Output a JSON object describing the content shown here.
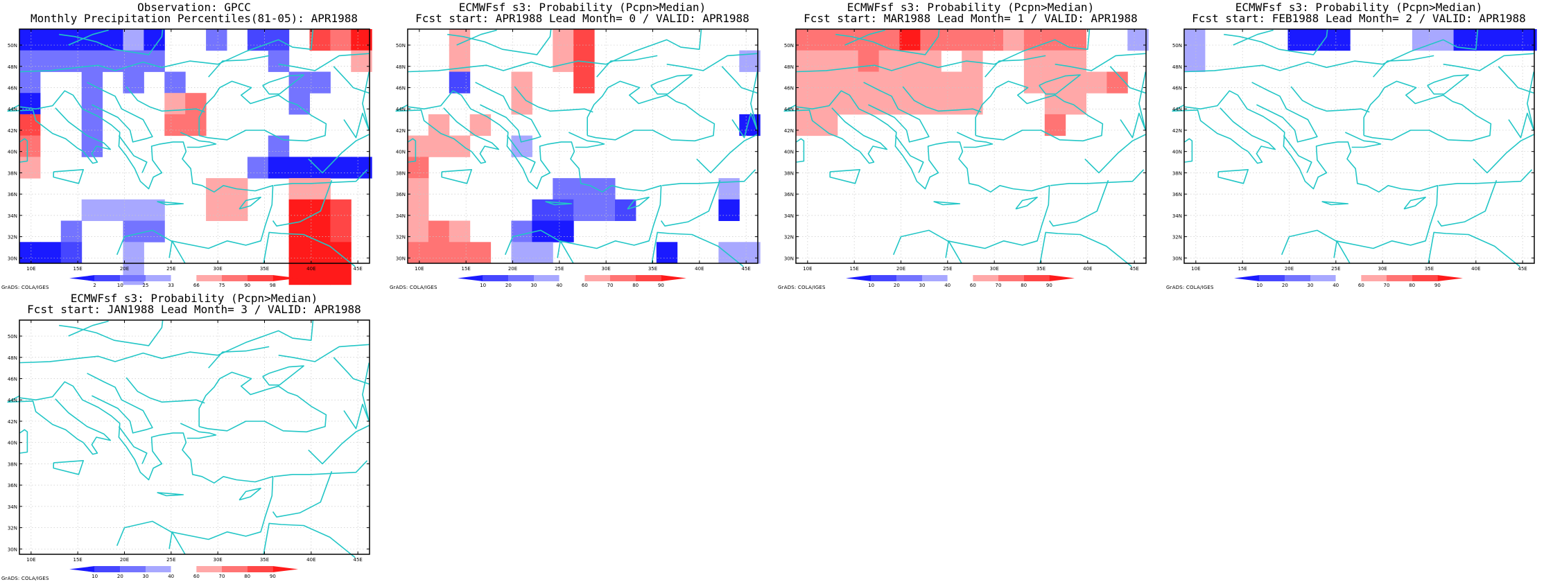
{
  "grads_credit": "GrADS: COLA/IGES",
  "lat_ticks": [
    "30N",
    "32N",
    "34N",
    "36N",
    "38N",
    "40N",
    "42N",
    "44N",
    "46N",
    "48N",
    "50N"
  ],
  "lon_ticks": [
    "10E",
    "15E",
    "20E",
    "25E",
    "30E",
    "35E",
    "40E",
    "45E"
  ],
  "colors": {
    "coastline": "#22c6c6",
    "grid": "#c8c8c8",
    "obs_scale": [
      "#1a1aff",
      "#4646ff",
      "#7474ff",
      "#a8a8ff",
      "#ffffff",
      "#ffa8a8",
      "#ff7474",
      "#ff4646",
      "#ff1a1a"
    ],
    "prob_scale": [
      "#1a1aff",
      "#4646ff",
      "#7474ff",
      "#a8a8ff",
      "#ffffff",
      "#ffa8a8",
      "#ff7474",
      "#ff4646",
      "#ff1a1a"
    ]
  },
  "panels": [
    {
      "title_line1": "Observation: GPCC",
      "title_line2": "Monthly Precipitation Percentiles(81-05): APR1988",
      "legend_labels": [
        "2",
        "10",
        "25",
        "33",
        "66",
        "75",
        "90",
        "98"
      ],
      "grid": [
        "cccccvdnnsnbbnrpy",
        "eeeeeeennnnnsnnnq",
        "ennsnenennnnnssnn",
        "cnnsnnnqpnnnnsnnn",
        "rnnsnnnppnnnnnnnn",
        "pnnsnnnnnnnnsnnnn",
        "qnnnnnnnnnnscccdd",
        "nnnnnnnnnqqnnqqnn",
        "nnnvvvvnnqqnnyyrn",
        "nnsnnssnnnnnnyyrn",
        "ddtnnvnnnnnnnyyyn",
        "nnnnnvnnnnnnnyyyn"
      ]
    },
    {
      "title_line1": "ECMWFsf s3: Probability (Pcpn>Median)",
      "title_line2": "Fcst start: APR1988  Lead Month= 0 / VALID: APR1988",
      "legend_labels": [
        "10",
        "20",
        "30",
        "40",
        "60",
        "70",
        "80",
        "90"
      ],
      "grid": [
        "nnqnnnnqrnnnnnnnn",
        "nnqnnnnqrnnnnnnnv",
        "nntnnqnnrnnnnnnnn",
        "nnnnnqnnnnnnnnnnn",
        "nqnqnnnnnnnnnnnnc",
        "qqqnnvnnnnnnnnnnn",
        "pnnnnnnnnnnnnnnnn",
        "qnnnnnnsssnnnnnvn",
        "qnnnnnttsstnnnncn",
        "qpqnnsccnnnnnnnnn",
        "ppppnvvnnnnncnnvv",
        "nnnnnnnnnnnnnnnnn"
      ]
    },
    {
      "title_line1": "ECMWFsf s3: Probability (Pcpn>Median)",
      "title_line2": "Fcst start: MAR1988  Lead Month= 1 / VALID: APR1988",
      "legend_labels": [
        "10",
        "20",
        "30",
        "40",
        "60",
        "70",
        "80",
        "90"
      ],
      "grid": [
        "pppppyppppqpppnnv",
        "qqqpqqqnqnnqqqnnn",
        "qqqqqqqqqnnqqqqpn",
        "qqqqqqqqqnnnqqnnn",
        "qqnnnnnnnnnnpnnnn",
        "nnnnnnnnnnnnnnnnn",
        "nnnnnnnnnnnnnnnnn",
        "nnnnnnnnnnnnnnnnn",
        "nnnnnnnnnnnnnnnnn",
        "nnnnnnnnnnnnnnnnn",
        "nnnnnnnnnnnnnnnnn",
        "nnnnnnnnnnnnnnnnn"
      ]
    },
    {
      "title_line1": "ECMWFsf s3: Probability (Pcpn>Median)",
      "title_line2": "Fcst start: FEB1988  Lead Month= 2 / VALID: APR1988",
      "legend_labels": [
        "10",
        "20",
        "30",
        "40",
        "60",
        "70",
        "80",
        "90"
      ],
      "grid": [
        "vnnnncccnnnvvccdd",
        "vnnnnnnnnnnnnnnnn",
        "nnnnnnnnnnnnnnnnn",
        "nnnnnnnnnnnnnnnnn",
        "nnnnnnnnnnnnnnnnn",
        "nnnnnnnnnnnnnnnnn",
        "nnnnnnnnnnnnnnnnn",
        "nnnnnnnnnnnnnnnnn",
        "nnnnnnnnnnnnnnnnn",
        "nnnnnnnnnnnnnnnnn",
        "nnnnnnnnnnnnnnnnn",
        "nnnnnnnnnnnnnnnnn"
      ]
    },
    {
      "title_line1": "ECMWFsf s3: Probability (Pcpn>Median)",
      "title_line2": "Fcst start: JAN1988  Lead Month= 3 / VALID: APR1988",
      "legend_labels": [
        "10",
        "20",
        "30",
        "40",
        "60",
        "70",
        "80",
        "90"
      ],
      "grid": [
        "nnnnnnnnnnnnnnnnn",
        "nnnnnnnnnnnnnnnnn",
        "nnnnnnnnnnnnnnnnn",
        "nnnnnnnnnnnnnnnnn",
        "nnnnnnnnnnnnnnnnn",
        "nnnnnnnnnnnnnnnnn",
        "nnnnnnnnnnnnnnnnn",
        "nnnnnnnnnnnnnnnnn",
        "nnnnnnnnnnnnnnnnn",
        "nnnnnnnnnnnnnnnnn",
        "nnnnnnnnnnnnnnnnn",
        "nnnnnnnnnnnnnnnnn"
      ]
    }
  ]
}
